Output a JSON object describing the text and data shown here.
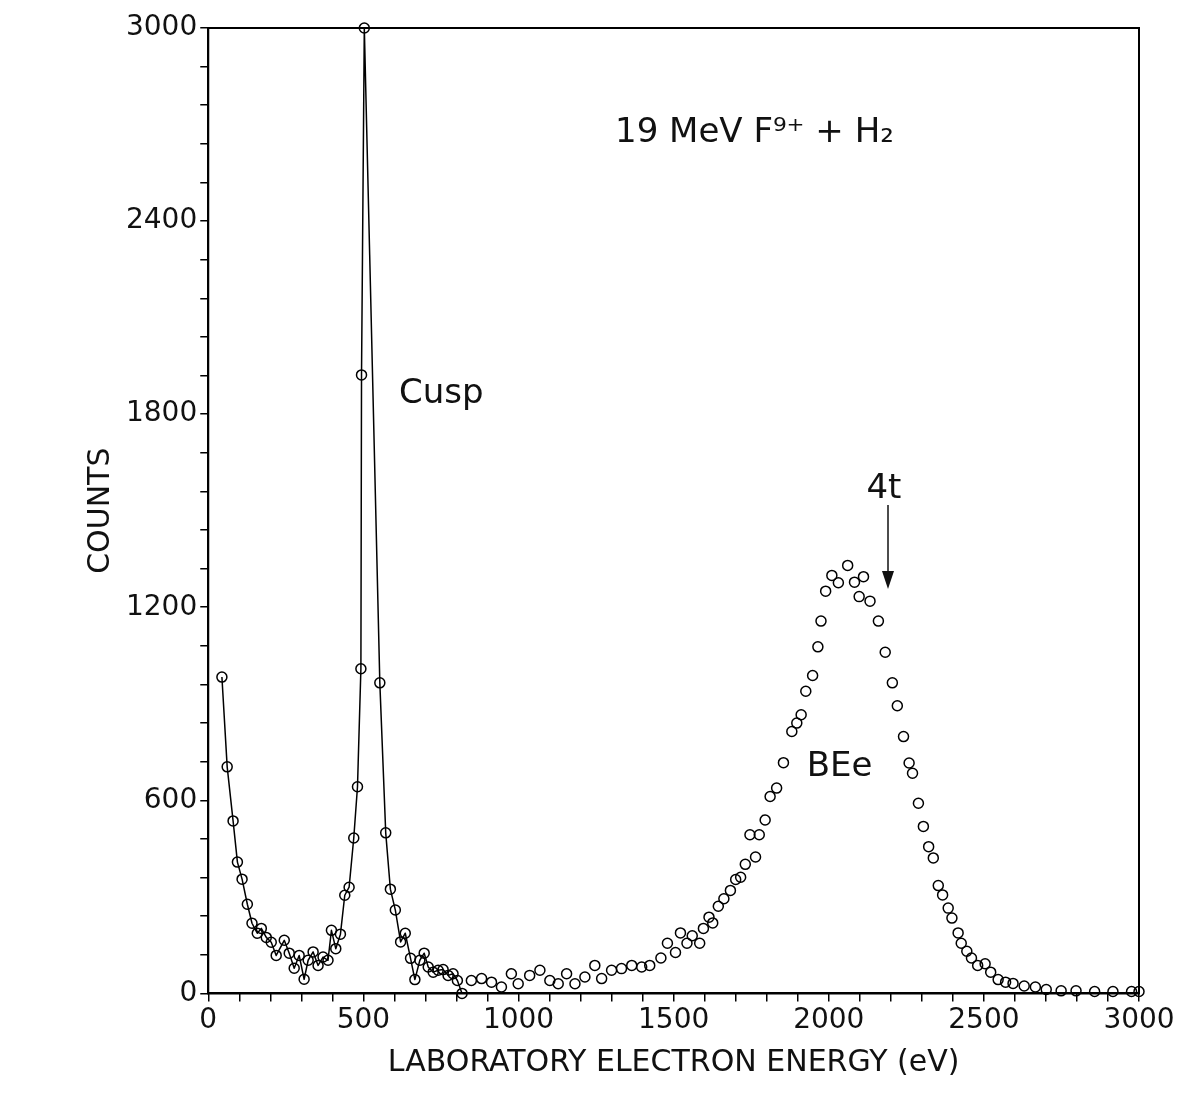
{
  "chart_data": {
    "type": "scatter",
    "title": "19 MeV F⁹⁺ + H₂",
    "xlabel": "LABORATORY ELECTRON ENERGY (eV)",
    "ylabel": "COUNTS",
    "xlim": [
      0,
      3000
    ],
    "ylim": [
      0,
      3000
    ],
    "xticks": [
      0,
      {
        "value": 100,
        "label": null
      },
      {
        "value": 200,
        "label": null
      },
      {
        "value": 300,
        "label": null
      },
      {
        "value": 400,
        "label": null
      },
      500,
      {
        "value": 600,
        "label": null
      },
      {
        "value": 700,
        "label": null
      },
      {
        "value": 800,
        "label": null
      },
      {
        "value": 900,
        "label": null
      },
      1000,
      {
        "value": 1100,
        "label": null
      },
      {
        "value": 1200,
        "label": null
      },
      {
        "value": 1300,
        "label": null
      },
      {
        "value": 1400,
        "label": null
      },
      1500,
      {
        "value": 1600,
        "label": null
      },
      {
        "value": 1700,
        "label": null
      },
      {
        "value": 1800,
        "label": null
      },
      {
        "value": 1900,
        "label": null
      },
      2000,
      {
        "value": 2100,
        "label": null
      },
      {
        "value": 2200,
        "label": null
      },
      {
        "value": 2300,
        "label": null
      },
      {
        "value": 2400,
        "label": null
      },
      2500,
      {
        "value": 2600,
        "label": null
      },
      {
        "value": 2700,
        "label": null
      },
      {
        "value": 2800,
        "label": null
      },
      {
        "value": 2900,
        "label": null
      },
      3000
    ],
    "yticks": [
      0,
      {
        "value": 120,
        "label": null
      },
      {
        "value": 240,
        "label": null
      },
      {
        "value": 360,
        "label": null
      },
      {
        "value": 480,
        "label": null
      },
      600,
      {
        "value": 720,
        "label": null
      },
      {
        "value": 840,
        "label": null
      },
      {
        "value": 960,
        "label": null
      },
      {
        "value": 1080,
        "label": null
      },
      1200,
      {
        "value": 1320,
        "label": null
      },
      {
        "value": 1440,
        "label": null
      },
      {
        "value": 1560,
        "label": null
      },
      {
        "value": 1680,
        "label": null
      },
      1800,
      {
        "value": 1920,
        "label": null
      },
      {
        "value": 2040,
        "label": null
      },
      {
        "value": 2160,
        "label": null
      },
      {
        "value": 2280,
        "label": null
      },
      2400,
      {
        "value": 2520,
        "label": null
      },
      {
        "value": 2640,
        "label": null
      },
      {
        "value": 2760,
        "label": null
      },
      {
        "value": 2880,
        "label": null
      },
      3000
    ],
    "grid": false,
    "legend": false,
    "marker": "circle",
    "line_style": "solid",
    "series": [
      {
        "type": "line",
        "color": "#000000",
        "x": [
          44,
          61,
          80,
          94,
          109,
          126,
          141,
          158,
          171,
          187,
          203,
          219,
          245,
          261,
          277,
          293,
          309,
          322,
          338,
          354,
          370,
          386,
          397,
          411,
          426,
          440,
          454,
          469,
          481,
          492,
          494,
          503,
          553,
          572,
          587,
          603,
          620,
          635,
          652,
          666,
          682,
          696,
          709,
          725,
          741,
          757,
          773,
          789,
          803,
          818
        ],
        "values": [
          983,
          704,
          536,
          408,
          355,
          277,
          218,
          187,
          202,
          174,
          159,
          118,
          165,
          125,
          78,
          118,
          44,
          103,
          129,
          87,
          113,
          103,
          196,
          139,
          184,
          305,
          330,
          483,
          642,
          1009,
          1922,
          3000,
          965,
          499,
          324,
          259,
          160,
          187,
          109,
          43,
          103,
          125,
          82,
          66,
          72,
          74,
          56,
          61,
          40,
          0
        ]
      },
      {
        "type": "scatter",
        "color": "#000000",
        "x": [
          848,
          881,
          913,
          945,
          977,
          999,
          1036,
          1069,
          1101,
          1128,
          1155,
          1182,
          1214,
          1246,
          1268,
          1300,
          1332,
          1365,
          1397,
          1423,
          1459,
          1480,
          1506,
          1522,
          1543,
          1560,
          1584,
          1596,
          1614,
          1626,
          1644,
          1662,
          1683,
          1700,
          1716,
          1731,
          1746,
          1764,
          1776,
          1795,
          1811,
          1832,
          1854,
          1881,
          1897,
          1911,
          1926,
          1948,
          1965,
          1975,
          1990,
          2010,
          2031,
          2061,
          2083,
          2098,
          2112,
          2133,
          2160,
          2182,
          2205,
          2221,
          2241,
          2259,
          2270,
          2289,
          2305,
          2322,
          2337,
          2353,
          2367,
          2385,
          2397,
          2417,
          2427,
          2445,
          2460,
          2480,
          2504,
          2522,
          2546,
          2570,
          2594,
          2630,
          2666,
          2701,
          2749,
          2797,
          2857,
          2916,
          2976,
          3000
        ],
        "values": [
          40,
          46,
          35,
          20,
          61,
          30,
          56,
          72,
          40,
          30,
          61,
          30,
          51,
          87,
          46,
          72,
          77,
          87,
          82,
          87,
          110,
          156,
          127,
          188,
          156,
          179,
          156,
          202,
          237,
          219,
          271,
          294,
          320,
          354,
          361,
          401,
          493,
          424,
          493,
          539,
          612,
          638,
          717,
          814,
          840,
          866,
          939,
          988,
          1077,
          1157,
          1250,
          1299,
          1276,
          1330,
          1278,
          1233,
          1295,
          1219,
          1157,
          1060,
          965,
          894,
          798,
          716,
          684,
          591,
          519,
          456,
          421,
          335,
          306,
          265,
          234,
          188,
          156,
          131,
          110,
          87,
          92,
          66,
          43,
          35,
          31,
          23,
          20,
          12,
          8,
          8,
          6,
          6,
          6,
          6
        ]
      }
    ],
    "annotations": [
      "Cusp",
      "BEe",
      "4t"
    ]
  }
}
